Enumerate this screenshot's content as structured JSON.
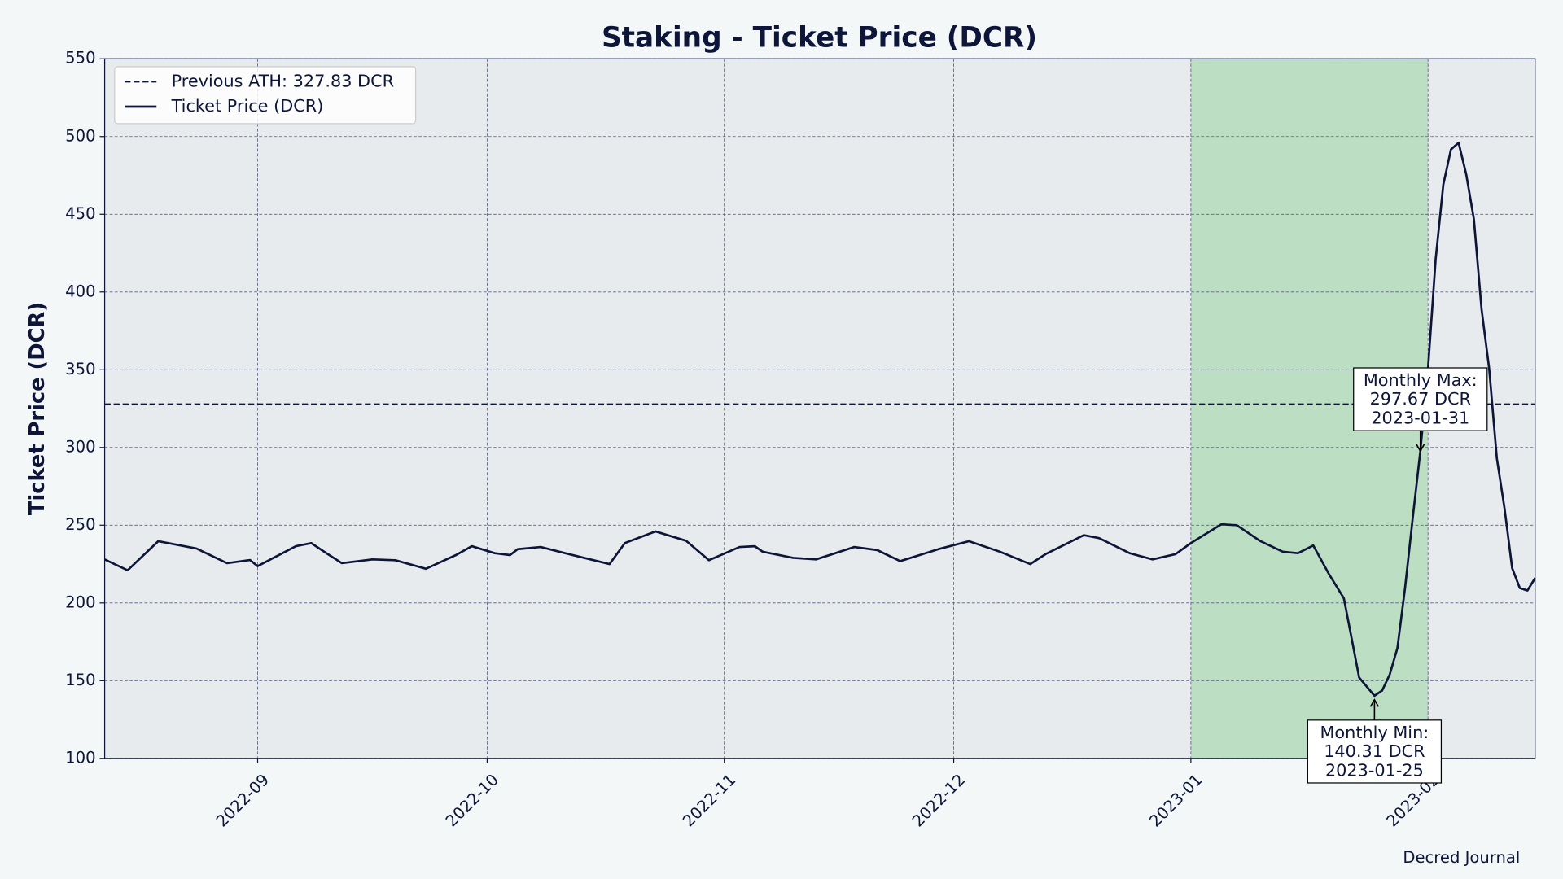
{
  "chart_data": {
    "type": "line",
    "title": "Staking - Ticket Price (DCR)",
    "y_label": "Ticket Price (DCR)",
    "footer": "Decred Journal",
    "x": [
      "2022-08-12",
      "2022-08-15",
      "2022-08-19",
      "2022-08-24",
      "2022-08-28",
      "2022-08-31",
      "2022-09-01",
      "2022-09-06",
      "2022-09-08",
      "2022-09-10",
      "2022-09-12",
      "2022-09-16",
      "2022-09-19",
      "2022-09-23",
      "2022-09-27",
      "2022-09-29",
      "2022-10-02",
      "2022-10-04",
      "2022-10-05",
      "2022-10-08",
      "2022-10-12",
      "2022-10-17",
      "2022-10-19",
      "2022-10-23",
      "2022-10-27",
      "2022-10-30",
      "2022-11-03",
      "2022-11-05",
      "2022-11-06",
      "2022-11-10",
      "2022-11-13",
      "2022-11-18",
      "2022-11-21",
      "2022-11-24",
      "2022-11-29",
      "2022-12-03",
      "2022-12-07",
      "2022-12-11",
      "2022-12-13",
      "2022-12-18",
      "2022-12-20",
      "2022-12-24",
      "2022-12-27",
      "2022-12-30",
      "2023-01-01",
      "2023-01-05",
      "2023-01-07",
      "2023-01-10",
      "2023-01-13",
      "2023-01-15",
      "2023-01-17",
      "2023-01-19",
      "2023-01-21",
      "2023-01-22",
      "2023-01-23",
      "2023-01-25",
      "2023-01-26",
      "2023-01-27",
      "2023-01-28",
      "2023-01-29",
      "2023-01-30",
      "2023-01-31",
      "2023-02-01",
      "2023-02-02",
      "2023-02-03",
      "2023-02-04",
      "2023-02-05",
      "2023-02-06",
      "2023-02-07",
      "2023-02-08",
      "2023-02-09",
      "2023-02-10",
      "2023-02-11",
      "2023-02-12",
      "2023-02-13",
      "2023-02-14",
      "2023-02-15"
    ],
    "series": [
      {
        "name": "Ticket Price (DCR)",
        "color": "#0d1638",
        "values": [
          228,
          221,
          239.7,
          235,
          225.6,
          227.6,
          223.7,
          236.5,
          238.5,
          232,
          225.6,
          228,
          227.5,
          222,
          231,
          236.5,
          232,
          230.8,
          234.6,
          236,
          231,
          225,
          238.5,
          246,
          240,
          227.5,
          236,
          236.5,
          233,
          229,
          228,
          236,
          234,
          226.9,
          234.6,
          239.7,
          233,
          225,
          231.4,
          243.6,
          241.7,
          232,
          228,
          231.4,
          238.5,
          250.6,
          250,
          240,
          233,
          232,
          237,
          219,
          203,
          177.6,
          152,
          140.31,
          143.6,
          154,
          171,
          209.6,
          254.5,
          297.67,
          350.6,
          421,
          469,
          491.7,
          496,
          475.6,
          446.8,
          389,
          350.6,
          293,
          261,
          222.4,
          209.6,
          208,
          216
        ]
      }
    ],
    "reference_line": {
      "name": "Previous ATH: 327.83 DCR",
      "value": 327.83,
      "color": "#0d1638"
    },
    "highlight": {
      "start": "2023-01-01",
      "end": "2023-02-01",
      "color": "#bcdfc4"
    },
    "annotations": [
      {
        "text": [
          "Monthly Max:",
          "297.67 DCR",
          "2023-01-31"
        ],
        "x": "2023-01-31",
        "y": 297.67
      },
      {
        "text": [
          "Monthly Min:",
          "140.31 DCR",
          "2023-01-25"
        ],
        "x": "2023-01-25",
        "y": 140.31
      }
    ],
    "xlim": [
      "2022-08-12",
      "2023-02-15"
    ],
    "xticks": [
      {
        "value": "2022-09-01",
        "label": "2022-09"
      },
      {
        "value": "2022-10-01",
        "label": "2022-10"
      },
      {
        "value": "2022-11-01",
        "label": "2022-11"
      },
      {
        "value": "2022-12-01",
        "label": "2022-12"
      },
      {
        "value": "2023-01-01",
        "label": "2023-01"
      },
      {
        "value": "2023-02-01",
        "label": "2023-02"
      }
    ],
    "ylim": [
      100,
      550
    ],
    "yticks": [
      100,
      150,
      200,
      250,
      300,
      350,
      400,
      450,
      500,
      550
    ],
    "grid": true,
    "legend": "upper-left",
    "plot_background": "#e8ebee"
  }
}
